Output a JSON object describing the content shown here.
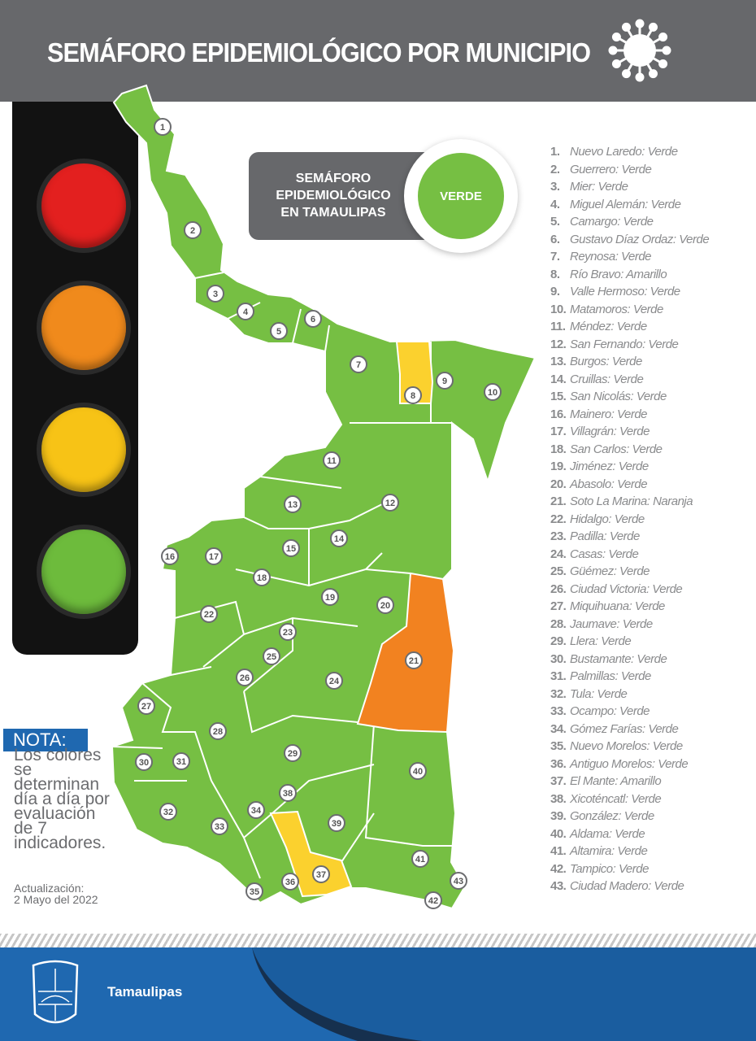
{
  "header": {
    "title": "SEMÁFORO EPIDEMIOLÓGICO POR MUNICIPIO",
    "icon": "virus-icon"
  },
  "traffic_light": {
    "lamps": [
      "#e3201f",
      "#f08a1c",
      "#f7c316",
      "#6dbb3c"
    ]
  },
  "state_status": {
    "label_lines": [
      "SEMÁFORO",
      "EPIDEMIOLÓGICO",
      "EN TAMAULIPAS"
    ],
    "value": "VERDE",
    "color": "#76bf43"
  },
  "colors": {
    "Verde": "#76bf43",
    "Amarillo": "#fbd12e",
    "Naranja": "#f28220"
  },
  "municipalities": [
    {
      "n": "1.",
      "name": "Nuevo Laredo",
      "status": "Verde"
    },
    {
      "n": "2.",
      "name": "Guerrero",
      "status": "Verde"
    },
    {
      "n": "3.",
      "name": "Mier",
      "status": "Verde"
    },
    {
      "n": "4.",
      "name": "Miguel Alemán",
      "status": "Verde"
    },
    {
      "n": "5.",
      "name": "Camargo",
      "status": "Verde"
    },
    {
      "n": "6.",
      "name": "Gustavo Díaz Ordaz",
      "status": "Verde"
    },
    {
      "n": "7.",
      "name": "Reynosa",
      "status": "Verde"
    },
    {
      "n": "8.",
      "name": "Río Bravo",
      "status": "Amarillo"
    },
    {
      "n": "9.",
      "name": "Valle Hermoso",
      "status": "Verde"
    },
    {
      "n": "10.",
      "name": "Matamoros",
      "status": "Verde"
    },
    {
      "n": "11.",
      "name": "Méndez",
      "status": "Verde"
    },
    {
      "n": "12.",
      "name": "San Fernando",
      "status": "Verde"
    },
    {
      "n": "13.",
      "name": "Burgos",
      "status": "Verde"
    },
    {
      "n": "14.",
      "name": "Cruillas",
      "status": "Verde"
    },
    {
      "n": "15.",
      "name": "San Nicolás",
      "status": "Verde"
    },
    {
      "n": "16.",
      "name": "Mainero",
      "status": "Verde"
    },
    {
      "n": "17.",
      "name": "Villagrán",
      "status": "Verde"
    },
    {
      "n": "18.",
      "name": "San Carlos",
      "status": "Verde"
    },
    {
      "n": "19.",
      "name": "Jiménez",
      "status": "Verde"
    },
    {
      "n": "20.",
      "name": "Abasolo",
      "status": "Verde"
    },
    {
      "n": "21.",
      "name": "Soto La Marina",
      "status": "Naranja"
    },
    {
      "n": "22.",
      "name": "Hidalgo",
      "status": "Verde"
    },
    {
      "n": "23.",
      "name": "Padilla",
      "status": "Verde"
    },
    {
      "n": "24.",
      "name": "Casas",
      "status": "Verde"
    },
    {
      "n": "25.",
      "name": "Güémez",
      "status": "Verde"
    },
    {
      "n": "26.",
      "name": "Ciudad Victoria",
      "status": "Verde"
    },
    {
      "n": "27.",
      "name": "Miquihuana",
      "status": "Verde"
    },
    {
      "n": "28.",
      "name": "Jaumave",
      "status": "Verde"
    },
    {
      "n": "29.",
      "name": "Llera",
      "status": "Verde"
    },
    {
      "n": "30.",
      "name": "Bustamante",
      "status": "Verde"
    },
    {
      "n": "31.",
      "name": "Palmillas",
      "status": "Verde"
    },
    {
      "n": "32.",
      "name": "Tula",
      "status": "Verde"
    },
    {
      "n": "33.",
      "name": "Ocampo",
      "status": "Verde"
    },
    {
      "n": "34.",
      "name": "Gómez Farías",
      "status": "Verde"
    },
    {
      "n": "35.",
      "name": "Nuevo Morelos",
      "status": "Verde"
    },
    {
      "n": "36.",
      "name": "Antiguo Morelos",
      "status": "Verde"
    },
    {
      "n": "37.",
      "name": "El Mante",
      "status": "Amarillo"
    },
    {
      "n": "38.",
      "name": "Xicoténcatl",
      "status": "Verde"
    },
    {
      "n": "39.",
      "name": "González",
      "status": "Verde"
    },
    {
      "n": "40.",
      "name": "Aldama",
      "status": "Verde"
    },
    {
      "n": "41.",
      "name": "Altamira",
      "status": "Verde"
    },
    {
      "n": "42.",
      "name": "Tampico",
      "status": "Verde"
    },
    {
      "n": "43.",
      "name": "Ciudad Madero",
      "status": "Verde"
    }
  ],
  "nota": {
    "label": "NOTA:",
    "text": "Los colores se determinan día a día por evaluación de 7 indicadores."
  },
  "update": {
    "line1": "Actualización:",
    "line2": "2 Mayo del 2022"
  },
  "footer": {
    "brand": "Tamaulipas",
    "logo": "tamaulipas-coat-of-arms"
  }
}
